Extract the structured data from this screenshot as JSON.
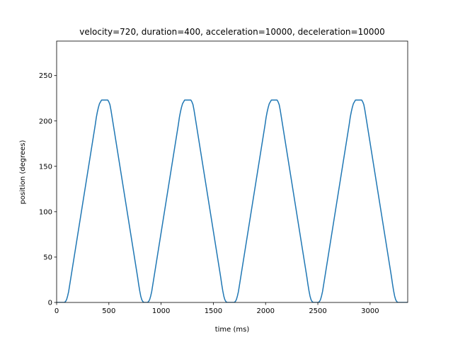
{
  "chart_data": {
    "type": "line",
    "title": "velocity=720, duration=400, acceleration=10000, deceleration=10000",
    "xlabel": "time (ms)",
    "ylabel": "position (degrees)",
    "xlim": [
      0,
      3360
    ],
    "ylim": [
      0,
      288
    ],
    "xticks": [
      0,
      500,
      1000,
      1500,
      2000,
      2500,
      3000
    ],
    "yticks": [
      0,
      50,
      100,
      150,
      200,
      250
    ],
    "grid": false,
    "legend": "none",
    "series": [
      {
        "color": "#1f77b4",
        "points": [
          [
            0,
            0
          ],
          [
            75,
            0
          ],
          [
            85,
            1
          ],
          [
            95,
            3
          ],
          [
            105,
            7
          ],
          [
            115,
            12
          ],
          [
            370,
            196
          ],
          [
            380,
            204
          ],
          [
            390,
            210
          ],
          [
            400,
            215
          ],
          [
            410,
            219
          ],
          [
            420,
            221
          ],
          [
            430,
            223
          ],
          [
            490,
            223
          ],
          [
            500,
            221
          ],
          [
            510,
            218
          ],
          [
            520,
            212
          ],
          [
            775,
            28
          ],
          [
            785,
            20
          ],
          [
            795,
            13
          ],
          [
            805,
            7
          ],
          [
            815,
            3
          ],
          [
            825,
            1
          ],
          [
            835,
            0
          ],
          [
            870,
            0
          ],
          [
            880,
            1
          ],
          [
            890,
            3
          ],
          [
            900,
            7
          ],
          [
            910,
            12
          ],
          [
            1165,
            196
          ],
          [
            1175,
            204
          ],
          [
            1185,
            210
          ],
          [
            1195,
            215
          ],
          [
            1205,
            219
          ],
          [
            1215,
            221
          ],
          [
            1225,
            223
          ],
          [
            1285,
            223
          ],
          [
            1295,
            221
          ],
          [
            1305,
            218
          ],
          [
            1315,
            212
          ],
          [
            1570,
            28
          ],
          [
            1580,
            20
          ],
          [
            1590,
            13
          ],
          [
            1600,
            7
          ],
          [
            1610,
            3
          ],
          [
            1620,
            1
          ],
          [
            1630,
            0
          ],
          [
            1700,
            0
          ],
          [
            1710,
            1
          ],
          [
            1720,
            3
          ],
          [
            1730,
            7
          ],
          [
            1740,
            12
          ],
          [
            1995,
            196
          ],
          [
            2005,
            204
          ],
          [
            2015,
            210
          ],
          [
            2025,
            215
          ],
          [
            2035,
            219
          ],
          [
            2045,
            221
          ],
          [
            2055,
            223
          ],
          [
            2110,
            223
          ],
          [
            2120,
            221
          ],
          [
            2130,
            218
          ],
          [
            2140,
            212
          ],
          [
            2395,
            28
          ],
          [
            2405,
            20
          ],
          [
            2415,
            13
          ],
          [
            2425,
            7
          ],
          [
            2435,
            3
          ],
          [
            2445,
            1
          ],
          [
            2455,
            0
          ],
          [
            2505,
            0
          ],
          [
            2515,
            1
          ],
          [
            2525,
            3
          ],
          [
            2535,
            7
          ],
          [
            2545,
            12
          ],
          [
            2800,
            196
          ],
          [
            2810,
            204
          ],
          [
            2820,
            210
          ],
          [
            2830,
            215
          ],
          [
            2840,
            219
          ],
          [
            2850,
            221
          ],
          [
            2860,
            223
          ],
          [
            2920,
            223
          ],
          [
            2930,
            221
          ],
          [
            2940,
            218
          ],
          [
            2950,
            212
          ],
          [
            3205,
            28
          ],
          [
            3215,
            20
          ],
          [
            3225,
            13
          ],
          [
            3235,
            7
          ],
          [
            3245,
            3
          ],
          [
            3255,
            1
          ],
          [
            3265,
            0
          ],
          [
            3360,
            0
          ]
        ]
      }
    ]
  }
}
